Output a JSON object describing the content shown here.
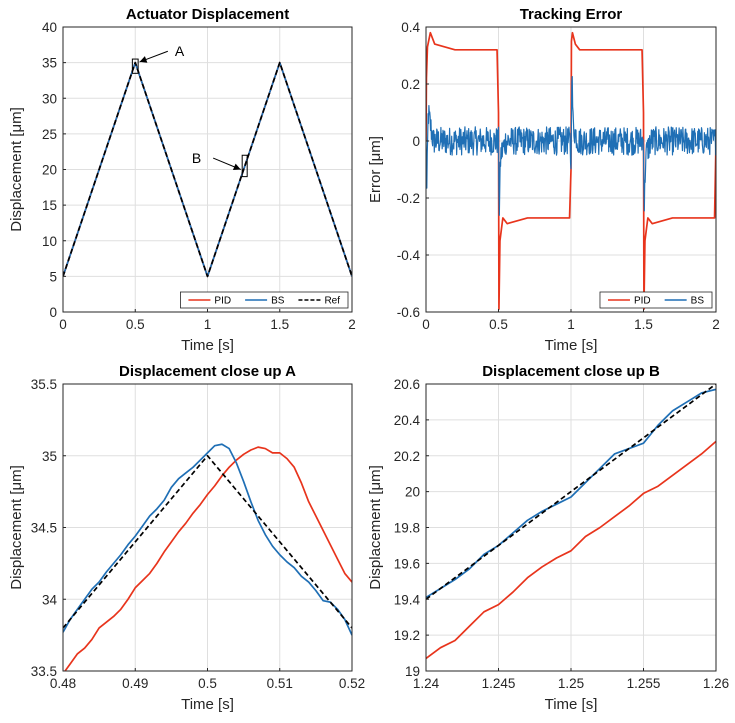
{
  "chart_data": [
    {
      "type": "line",
      "title": "Actuator Displacement",
      "xlabel": "Time [s]",
      "ylabel": "Displacement [μm]",
      "xlim": [
        0,
        2
      ],
      "ylim": [
        0,
        40
      ],
      "xticks": [
        "0",
        "0.5",
        "1",
        "1.5",
        "2"
      ],
      "xtick_values": [
        0,
        0.5,
        1,
        1.5,
        2
      ],
      "yticks": [
        "0",
        "5",
        "10",
        "15",
        "20",
        "25",
        "30",
        "35",
        "40"
      ],
      "ytick_values": [
        0,
        5,
        10,
        15,
        20,
        25,
        30,
        35,
        40
      ],
      "grid": true,
      "legend_position": "bottom-right",
      "series": [
        {
          "name": "PID",
          "color": "#e8341c",
          "style": "solid",
          "x": [
            0,
            0.5,
            1,
            1.5,
            2
          ],
          "y": [
            5,
            35,
            5,
            35,
            5
          ]
        },
        {
          "name": "BS",
          "color": "#1f6fb5",
          "style": "solid",
          "x": [
            0,
            0.5,
            1,
            1.5,
            2
          ],
          "y": [
            5,
            35,
            5,
            35,
            5
          ]
        },
        {
          "name": "Ref",
          "color": "#000000",
          "style": "dashed",
          "x": [
            0,
            0.5,
            1,
            1.5,
            2
          ],
          "y": [
            5,
            35,
            5,
            35,
            5
          ]
        }
      ],
      "annotations": [
        {
          "label": "A",
          "box_x": [
            0.48,
            0.52
          ],
          "box_y": [
            33.5,
            35.5
          ],
          "text_x": 0.76,
          "text_y": 36.6,
          "arrow_to_x": 0.53,
          "arrow_to_y": 35.1
        },
        {
          "label": "B",
          "box_x": [
            1.24,
            1.26
          ],
          "box_y": [
            19,
            22
          ],
          "text_x": 0.97,
          "text_y": 21.6,
          "arrow_to_x": 1.23,
          "arrow_to_y": 20
        }
      ]
    },
    {
      "type": "line",
      "title": "Tracking Error",
      "xlabel": "Time [s]",
      "ylabel": "Error [μm]",
      "xlim": [
        0,
        2
      ],
      "ylim": [
        -0.6,
        0.4
      ],
      "xticks": [
        "0",
        "0.5",
        "1",
        "1.5",
        "2"
      ],
      "xtick_values": [
        0,
        0.5,
        1,
        1.5,
        2
      ],
      "yticks": [
        "-0.6",
        "-0.4",
        "-0.2",
        "0",
        "0.2",
        "0.4"
      ],
      "ytick_values": [
        -0.6,
        -0.4,
        -0.2,
        0,
        0.2,
        0.4
      ],
      "grid": true,
      "legend_position": "bottom-right",
      "series": [
        {
          "name": "PID",
          "color": "#e8341c",
          "style": "solid",
          "x": [
            0,
            0.003,
            0.01,
            0.03,
            0.06,
            0.2,
            0.49,
            0.5,
            0.503,
            0.51,
            0.53,
            0.56,
            0.7,
            0.99,
            1.0,
            1.003,
            1.01,
            1.03,
            1.06,
            1.2,
            1.49,
            1.5,
            1.503,
            1.51,
            1.53,
            1.56,
            1.7,
            1.99,
            2.0
          ],
          "y": [
            0.0,
            0.22,
            0.33,
            0.38,
            0.34,
            0.32,
            0.32,
            0.1,
            -0.59,
            -0.35,
            -0.27,
            -0.29,
            -0.27,
            -0.27,
            -0.1,
            0.35,
            0.38,
            0.34,
            0.32,
            0.32,
            0.32,
            0.1,
            -0.59,
            -0.35,
            -0.27,
            -0.29,
            -0.27,
            -0.27,
            0.0
          ]
        },
        {
          "name": "BS",
          "color": "#1f6fb5",
          "style": "solid",
          "x": [
            0,
            0.005,
            0.015,
            0.05,
            0.3,
            0.495,
            0.5,
            0.505,
            0.515,
            0.55,
            0.8,
            0.995,
            1.0,
            1.005,
            1.015,
            1.05,
            1.3,
            1.495,
            1.5,
            1.505,
            1.515,
            1.55,
            1.8,
            2.0
          ],
          "y": [
            0.0,
            -0.2,
            0.1,
            0.0,
            0.0,
            0.0,
            0.0,
            -0.25,
            -0.05,
            0.0,
            0.0,
            0.0,
            -0.12,
            0.27,
            0.05,
            0.0,
            0.0,
            0.0,
            0.0,
            -0.24,
            -0.05,
            0.0,
            0.0,
            0.0
          ],
          "noise_amplitude": 0.05
        }
      ]
    },
    {
      "type": "line",
      "title": "Displacement close up A",
      "xlabel": "Time [s]",
      "ylabel": "Displacement [μm]",
      "xlim": [
        0.48,
        0.52
      ],
      "ylim": [
        33.5,
        35.5
      ],
      "xticks": [
        "0.48",
        "0.49",
        "0.5",
        "0.51",
        "0.52"
      ],
      "xtick_values": [
        0.48,
        0.49,
        0.5,
        0.51,
        0.52
      ],
      "yticks": [
        "33.5",
        "34",
        "34.5",
        "35",
        "35.5"
      ],
      "ytick_values": [
        33.5,
        34,
        34.5,
        35,
        35.5
      ],
      "grid": true,
      "series": [
        {
          "name": "PID",
          "color": "#e8341c",
          "style": "solid",
          "x": [
            0.48,
            0.481,
            0.482,
            0.483,
            0.484,
            0.485,
            0.486,
            0.487,
            0.488,
            0.489,
            0.49,
            0.491,
            0.492,
            0.493,
            0.494,
            0.495,
            0.496,
            0.497,
            0.498,
            0.499,
            0.5,
            0.501,
            0.502,
            0.503,
            0.504,
            0.505,
            0.506,
            0.507,
            0.508,
            0.509,
            0.51,
            0.511,
            0.512,
            0.513,
            0.514,
            0.515,
            0.516,
            0.517,
            0.518,
            0.519,
            0.52
          ],
          "y": [
            33.48,
            33.55,
            33.62,
            33.66,
            33.72,
            33.8,
            33.84,
            33.88,
            33.93,
            34.0,
            34.08,
            34.13,
            34.18,
            34.25,
            34.33,
            34.4,
            34.47,
            34.53,
            34.6,
            34.66,
            34.73,
            34.79,
            34.86,
            34.92,
            34.97,
            35.01,
            35.04,
            35.06,
            35.05,
            35.02,
            35.02,
            34.98,
            34.92,
            34.81,
            34.68,
            34.58,
            34.48,
            34.38,
            34.28,
            34.18,
            34.12
          ]
        },
        {
          "name": "BS",
          "color": "#1f6fb5",
          "style": "solid",
          "x": [
            0.48,
            0.481,
            0.482,
            0.483,
            0.484,
            0.485,
            0.486,
            0.487,
            0.488,
            0.489,
            0.49,
            0.491,
            0.492,
            0.493,
            0.494,
            0.495,
            0.496,
            0.497,
            0.498,
            0.499,
            0.5,
            0.501,
            0.502,
            0.503,
            0.504,
            0.505,
            0.506,
            0.507,
            0.508,
            0.509,
            0.51,
            0.511,
            0.512,
            0.513,
            0.514,
            0.515,
            0.516,
            0.517,
            0.518,
            0.519,
            0.52
          ],
          "y": [
            33.77,
            33.86,
            33.93,
            34.0,
            34.07,
            34.12,
            34.19,
            34.25,
            34.31,
            34.38,
            34.44,
            34.51,
            34.58,
            34.63,
            34.69,
            34.78,
            34.84,
            34.88,
            34.92,
            34.97,
            35.02,
            35.07,
            35.08,
            35.05,
            34.95,
            34.82,
            34.68,
            34.55,
            34.45,
            34.37,
            34.31,
            34.26,
            34.22,
            34.16,
            34.12,
            34.06,
            33.99,
            33.98,
            33.93,
            33.86,
            33.75
          ]
        },
        {
          "name": "Ref",
          "color": "#000000",
          "style": "dashed",
          "x": [
            0.48,
            0.5,
            0.52
          ],
          "y": [
            33.8,
            35.0,
            33.8
          ]
        }
      ]
    },
    {
      "type": "line",
      "title": "Displacement close up B",
      "xlabel": "Time [s]",
      "ylabel": "Displacement [μm]",
      "xlim": [
        1.24,
        1.26
      ],
      "ylim": [
        19,
        20.6
      ],
      "xticks": [
        "1.24",
        "1.245",
        "1.25",
        "1.255",
        "1.26"
      ],
      "xtick_values": [
        1.24,
        1.245,
        1.25,
        1.255,
        1.26
      ],
      "yticks": [
        "19",
        "19.2",
        "19.4",
        "19.6",
        "19.8",
        "20",
        "20.2",
        "20.4",
        "20.6"
      ],
      "ytick_values": [
        19,
        19.2,
        19.4,
        19.6,
        19.8,
        20,
        20.2,
        20.4,
        20.6
      ],
      "grid": true,
      "series": [
        {
          "name": "PID",
          "color": "#e8341c",
          "style": "solid",
          "x": [
            1.24,
            1.241,
            1.242,
            1.243,
            1.244,
            1.245,
            1.246,
            1.247,
            1.248,
            1.249,
            1.25,
            1.251,
            1.252,
            1.253,
            1.254,
            1.255,
            1.256,
            1.257,
            1.258,
            1.259,
            1.26
          ],
          "y": [
            19.07,
            19.13,
            19.17,
            19.25,
            19.33,
            19.37,
            19.44,
            19.52,
            19.58,
            19.63,
            19.67,
            19.75,
            19.8,
            19.86,
            19.92,
            19.99,
            20.03,
            20.09,
            20.15,
            20.21,
            20.28
          ]
        },
        {
          "name": "BS",
          "color": "#1f6fb5",
          "style": "solid",
          "x": [
            1.24,
            1.241,
            1.242,
            1.243,
            1.244,
            1.245,
            1.246,
            1.247,
            1.248,
            1.249,
            1.25,
            1.251,
            1.252,
            1.253,
            1.254,
            1.255,
            1.256,
            1.257,
            1.258,
            1.259,
            1.26
          ],
          "y": [
            19.41,
            19.46,
            19.51,
            19.57,
            19.65,
            19.7,
            19.77,
            19.84,
            19.89,
            19.93,
            19.97,
            20.05,
            20.13,
            20.21,
            20.24,
            20.27,
            20.37,
            20.45,
            20.5,
            20.55,
            20.57
          ]
        },
        {
          "name": "Ref",
          "color": "#000000",
          "style": "dashed",
          "x": [
            1.24,
            1.26
          ],
          "y": [
            19.4,
            20.6
          ]
        }
      ]
    }
  ]
}
